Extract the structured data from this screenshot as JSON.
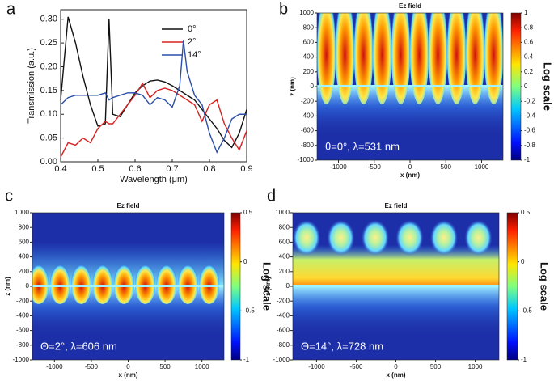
{
  "chart_data": [
    {
      "type": "line",
      "panel_label": "a",
      "xlabel": "Wavelength (μm)",
      "ylabel": "Transmission (a.u.)",
      "x": [
        0.4,
        0.42,
        0.44,
        0.46,
        0.48,
        0.5,
        0.52,
        0.53,
        0.54,
        0.56,
        0.58,
        0.6,
        0.62,
        0.64,
        0.66,
        0.68,
        0.7,
        0.72,
        0.73,
        0.74,
        0.76,
        0.78,
        0.8,
        0.82,
        0.84,
        0.86,
        0.88,
        0.9
      ],
      "series": [
        {
          "name": "0°",
          "color": "#111111",
          "values": [
            0.13,
            0.305,
            0.25,
            0.18,
            0.12,
            0.075,
            0.08,
            0.3,
            0.1,
            0.095,
            0.12,
            0.145,
            0.16,
            0.17,
            0.172,
            0.168,
            0.16,
            0.15,
            0.145,
            0.14,
            0.13,
            0.11,
            0.09,
            0.07,
            0.045,
            0.03,
            0.06,
            0.11
          ]
        },
        {
          "name": "2°",
          "color": "#d62020",
          "values": [
            0.01,
            0.04,
            0.035,
            0.05,
            0.04,
            0.07,
            0.085,
            0.08,
            0.08,
            0.1,
            0.12,
            0.14,
            0.165,
            0.135,
            0.15,
            0.155,
            0.15,
            0.14,
            0.135,
            0.13,
            0.12,
            0.085,
            0.12,
            0.13,
            0.08,
            0.05,
            0.025,
            0.065
          ]
        },
        {
          "name": "14°",
          "color": "#2a4fa8",
          "values": [
            0.12,
            0.135,
            0.14,
            0.14,
            0.14,
            0.14,
            0.145,
            0.13,
            0.135,
            0.14,
            0.145,
            0.145,
            0.14,
            0.12,
            0.135,
            0.13,
            0.115,
            0.16,
            0.255,
            0.19,
            0.14,
            0.12,
            0.06,
            0.02,
            0.05,
            0.09,
            0.1,
            0.1
          ]
        }
      ],
      "xlim": [
        0.4,
        0.9
      ],
      "xticks": [
        0.4,
        0.5,
        0.6,
        0.7,
        0.8,
        0.9
      ],
      "ylim": [
        0,
        0.32
      ],
      "yticks": [
        {
          "value": 0,
          "label": "0.00"
        },
        {
          "value": 0.05,
          "label": "0.05"
        },
        {
          "value": 0.1,
          "label": "0.10"
        },
        {
          "value": 0.15,
          "label": "0.15"
        },
        {
          "value": 0.2,
          "label": "0.20"
        },
        {
          "value": 0.25,
          "label": "0.25"
        },
        {
          "value": 0.3,
          "label": "0.30"
        }
      ],
      "legend": "upper center"
    },
    {
      "type": "heatmap",
      "panel_label": "b",
      "title": "Ez field",
      "xlabel": "x (nm)",
      "ylabel": "z (nm)",
      "annotation": "θ=0°, λ=531 nm",
      "xlim": [
        -1300,
        1300
      ],
      "xticks": [
        -1000,
        -500,
        0,
        500,
        1000
      ],
      "ylim": [
        -1000,
        1000
      ],
      "yticks": [
        -1000,
        -800,
        -600,
        -400,
        -200,
        0,
        200,
        400,
        600,
        800,
        1000
      ],
      "clim": [
        -1,
        1
      ],
      "colorbar_ticks": [
        -1,
        -0.8,
        -0.6,
        -0.4,
        -0.2,
        0,
        0.2,
        0.4,
        0.6,
        0.8,
        1
      ],
      "colorbar_label": "Log scale"
    },
    {
      "type": "heatmap",
      "panel_label": "c",
      "title": "Ez field",
      "xlabel": "x (nm)",
      "ylabel": "z (nm)",
      "annotation": "Θ=2°, λ=606 nm",
      "xlim": [
        -1300,
        1300
      ],
      "xticks": [
        -1000,
        -500,
        0,
        500,
        1000
      ],
      "ylim": [
        -1000,
        1000
      ],
      "yticks": [
        -1000,
        -800,
        -600,
        -400,
        -200,
        0,
        200,
        400,
        600,
        800,
        1000
      ],
      "clim": [
        -1,
        0.5
      ],
      "colorbar_ticks": [
        -1,
        -0.5,
        0,
        0.5
      ],
      "colorbar_label": "Log scale"
    },
    {
      "type": "heatmap",
      "panel_label": "d",
      "title": "Ez field",
      "xlabel": "x (nm)",
      "ylabel": "z (nm)",
      "annotation": "Θ=14°, λ=728 nm",
      "xlim": [
        -1300,
        1300
      ],
      "xticks": [
        -1000,
        -500,
        0,
        500,
        1000
      ],
      "ylim": [
        -1000,
        1000
      ],
      "yticks": [
        -1000,
        -800,
        -600,
        -400,
        -200,
        0,
        200,
        400,
        600,
        800,
        1000
      ],
      "clim": [
        -1,
        0.5
      ],
      "colorbar_ticks": [
        -1,
        -0.5,
        0,
        0.5
      ],
      "colorbar_label": "Log scale"
    }
  ]
}
